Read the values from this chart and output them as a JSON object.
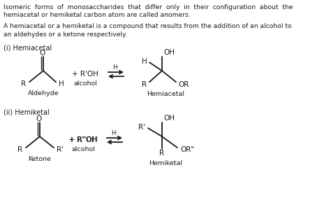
{
  "bg_color": "#ffffff",
  "text_color": "#1a1a1a",
  "para1_line1": "Isomeric  forms  of  monosaccharides  that  differ  only  in  their  configuration  about  the",
  "para1_line2": "hemiacetal or hemiketal carbon atom are called anomers.",
  "para2_line1": "A hemiacetal or a hemiketal is a compound that results from the addition of an alcohol to",
  "para2_line2": "an aldehydes or a ketone respectively.",
  "section1": "(i) Hemiacetal",
  "section2": "(ii) Hemiketal",
  "label_aldehyde": "Aldehyde",
  "label_alcohol1": "alcohol",
  "label_hemiacetal": "Hemiacetal",
  "label_ketone": "Ketone",
  "label_alcohol2": "alcohol",
  "label_hemiketal": "Hemiketal"
}
